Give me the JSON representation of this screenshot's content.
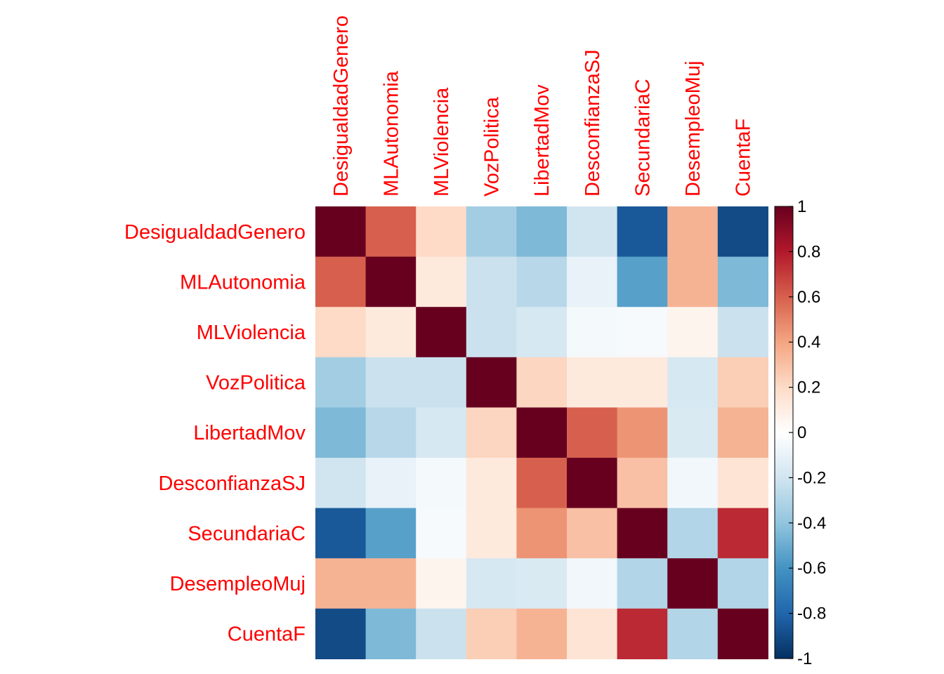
{
  "chart_data": {
    "type": "heatmap",
    "title": "",
    "variables": [
      "DesigualdadGenero",
      "MLAutonomia",
      "MLViolencia",
      "VozPolitica",
      "LibertadMov",
      "DesconfianzaSJ",
      "SecundariaC",
      "DesempleoMuj",
      "CuentaF"
    ],
    "matrix": [
      [
        1.0,
        0.6,
        0.2,
        -0.35,
        -0.45,
        -0.2,
        -0.85,
        0.35,
        -0.9
      ],
      [
        0.6,
        1.0,
        0.12,
        -0.22,
        -0.28,
        -0.1,
        -0.55,
        0.35,
        -0.45
      ],
      [
        0.2,
        0.12,
        1.0,
        -0.22,
        -0.18,
        -0.05,
        -0.04,
        0.06,
        -0.22
      ],
      [
        -0.35,
        -0.22,
        -0.22,
        1.0,
        0.22,
        0.12,
        0.12,
        -0.18,
        0.25
      ],
      [
        -0.45,
        -0.28,
        -0.18,
        0.22,
        1.0,
        0.6,
        0.45,
        -0.16,
        0.35
      ],
      [
        -0.2,
        -0.1,
        -0.05,
        0.12,
        0.6,
        1.0,
        0.3,
        -0.06,
        0.15
      ],
      [
        -0.85,
        -0.55,
        -0.04,
        0.12,
        0.45,
        0.3,
        1.0,
        -0.3,
        0.75
      ],
      [
        0.35,
        0.35,
        0.06,
        -0.18,
        -0.16,
        -0.06,
        -0.3,
        1.0,
        -0.3
      ],
      [
        -0.9,
        -0.45,
        -0.22,
        0.25,
        0.35,
        0.15,
        0.75,
        -0.3,
        1.0
      ]
    ],
    "colorbar": {
      "range": [
        -1,
        1
      ],
      "ticks": [
        "1",
        "0.8",
        "0.6",
        "0.4",
        "0.2",
        "0",
        "-0.2",
        "-0.4",
        "-0.6",
        "-0.8",
        "-1"
      ],
      "colors": [
        "#67001F",
        "#B2182B",
        "#D6604D",
        "#F4A582",
        "#FDDBC7",
        "#FFFFFF",
        "#D1E5F0",
        "#92C5DE",
        "#4393C3",
        "#2166AC",
        "#053061"
      ]
    },
    "label_color": "#FF0000",
    "grid": false,
    "legend": "right"
  }
}
